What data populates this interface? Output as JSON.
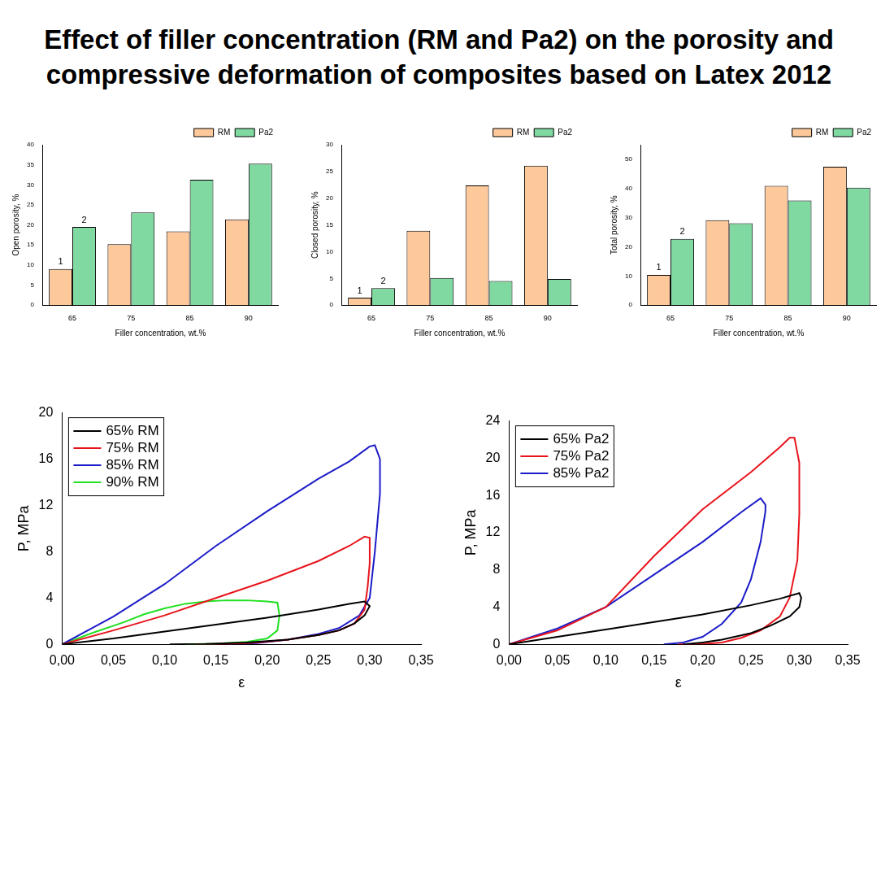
{
  "title": "Effect of filler concentration (RM and Pa2) on the porosity and compressive deformation of composites based on Latex 2012",
  "chart_data": [
    {
      "type": "bar",
      "x_label": "Filler concentration, wt.%",
      "y_label": "Open porosity, %",
      "categories": [
        "65",
        "75",
        "85",
        "90"
      ],
      "series": [
        {
          "name": "RM",
          "color": "#fdc89a",
          "values": [
            9.0,
            15.2,
            18.4,
            21.4
          ]
        },
        {
          "name": "Pa2",
          "color": "#80d9a0",
          "values": [
            19.5,
            23.1,
            31.3,
            35.3
          ]
        }
      ],
      "ylim": [
        0,
        40
      ],
      "yticks": [
        0,
        5,
        10,
        15,
        20,
        25,
        30,
        35,
        40
      ],
      "grid": false,
      "legend": "upper right",
      "annotations": [
        {
          "text": "1",
          "category": "65",
          "series": "RM"
        },
        {
          "text": "2",
          "category": "65",
          "series": "Pa2"
        }
      ]
    },
    {
      "type": "bar",
      "x_label": "Filler concentration, wt.%",
      "y_label": "Closed porosity, %",
      "categories": [
        "65",
        "75",
        "85",
        "90"
      ],
      "series": [
        {
          "name": "RM",
          "color": "#fdc89a",
          "values": [
            1.4,
            13.9,
            22.4,
            26.1
          ]
        },
        {
          "name": "Pa2",
          "color": "#80d9a0",
          "values": [
            3.2,
            5.1,
            4.5,
            4.9
          ]
        }
      ],
      "ylim": [
        0,
        30
      ],
      "yticks": [
        0,
        5,
        10,
        15,
        20,
        25,
        30
      ],
      "grid": false,
      "legend": "upper right",
      "annotations": [
        {
          "text": "1",
          "category": "65",
          "series": "RM"
        },
        {
          "text": "2",
          "category": "65",
          "series": "Pa2"
        }
      ]
    },
    {
      "type": "bar",
      "x_label": "Filler concentration, wt.%",
      "y_label": "Total porosity, %",
      "categories": [
        "65",
        "75",
        "85",
        "90"
      ],
      "series": [
        {
          "name": "RM",
          "color": "#fdc89a",
          "values": [
            10.4,
            29.1,
            40.9,
            47.5
          ]
        },
        {
          "name": "Pa2",
          "color": "#80d9a0",
          "values": [
            22.7,
            28.1,
            35.9,
            40.3
          ]
        }
      ],
      "ylim": [
        0,
        55
      ],
      "yticks": [
        0,
        10,
        20,
        30,
        40,
        50
      ],
      "grid": false,
      "legend": "upper right",
      "annotations": [
        {
          "text": "1",
          "category": "65",
          "series": "RM"
        },
        {
          "text": "2",
          "category": "65",
          "series": "Pa2"
        }
      ]
    },
    {
      "type": "line",
      "x_label": "ε",
      "y_label": "P, MPa",
      "series": [
        {
          "name": "65% RM",
          "color": "#000000",
          "x": [
            0,
            0.05,
            0.1,
            0.15,
            0.2,
            0.25,
            0.28,
            0.295,
            0.3,
            0.295,
            0.285,
            0.27,
            0.25,
            0.22,
            0.18,
            0.14,
            0.105
          ],
          "y": [
            0,
            0.5,
            1.1,
            1.7,
            2.3,
            3.0,
            3.5,
            3.7,
            3.3,
            2.5,
            1.8,
            1.2,
            0.8,
            0.4,
            0.15,
            0.03,
            0
          ]
        },
        {
          "name": "75% RM",
          "color": "#e8141c",
          "x": [
            0,
            0.05,
            0.1,
            0.15,
            0.2,
            0.25,
            0.28,
            0.295,
            0.3,
            0.3,
            0.298,
            0.295,
            0.285,
            0.27,
            0.25,
            0.22,
            0.19,
            0.16,
            0.13
          ],
          "y": [
            0,
            1.2,
            2.5,
            4.0,
            5.5,
            7.2,
            8.5,
            9.3,
            9.2,
            7.0,
            5.0,
            3.0,
            1.8,
            1.2,
            0.8,
            0.4,
            0.15,
            0.02,
            0
          ]
        },
        {
          "name": "85% RM",
          "color": "#1c1cc8",
          "x": [
            0,
            0.05,
            0.1,
            0.15,
            0.2,
            0.25,
            0.28,
            0.3,
            0.305,
            0.31,
            0.31,
            0.305,
            0.3,
            0.29,
            0.27,
            0.25,
            0.22,
            0.19,
            0.16
          ],
          "y": [
            0,
            2.4,
            5.2,
            8.5,
            11.5,
            14.3,
            15.8,
            17.1,
            17.2,
            16.0,
            13.0,
            8.0,
            4.0,
            2.5,
            1.4,
            0.9,
            0.4,
            0.1,
            0
          ]
        },
        {
          "name": "90% RM",
          "color": "#22e022",
          "x": [
            0,
            0.03,
            0.06,
            0.08,
            0.1,
            0.12,
            0.14,
            0.16,
            0.18,
            0.2,
            0.21,
            0.212,
            0.21,
            0.2,
            0.18,
            0.15,
            0.12
          ],
          "y": [
            0,
            1.0,
            1.9,
            2.6,
            3.1,
            3.5,
            3.7,
            3.8,
            3.8,
            3.7,
            3.6,
            2.5,
            1.2,
            0.5,
            0.2,
            0.05,
            0
          ]
        }
      ],
      "xlim": [
        0,
        0.35
      ],
      "xticks": [
        {
          "value": 0,
          "label": "0,00"
        },
        {
          "value": 0.05,
          "label": "0,05"
        },
        {
          "value": 0.1,
          "label": "0,10"
        },
        {
          "value": 0.15,
          "label": "0,15"
        },
        {
          "value": 0.2,
          "label": "0,20"
        },
        {
          "value": 0.25,
          "label": "0,25"
        },
        {
          "value": 0.3,
          "label": "0,30"
        },
        {
          "value": 0.35,
          "label": "0,35"
        }
      ],
      "ylim": [
        0,
        20
      ],
      "yticks": [
        0,
        4,
        8,
        12,
        16,
        20
      ],
      "grid": false,
      "legend": "upper left"
    },
    {
      "type": "line",
      "x_label": "ε",
      "y_label": "P, MPa",
      "series": [
        {
          "name": "65% Pa2",
          "color": "#000000",
          "x": [
            0,
            0.05,
            0.1,
            0.15,
            0.2,
            0.25,
            0.28,
            0.3,
            0.302,
            0.3,
            0.29,
            0.27,
            0.25,
            0.22,
            0.2,
            0.18
          ],
          "y": [
            0,
            0.8,
            1.6,
            2.4,
            3.2,
            4.2,
            4.9,
            5.5,
            5.0,
            4.0,
            3.0,
            2.0,
            1.2,
            0.5,
            0.2,
            0
          ]
        },
        {
          "name": "75% Pa2",
          "color": "#e8141c",
          "x": [
            0,
            0.05,
            0.1,
            0.15,
            0.2,
            0.25,
            0.28,
            0.29,
            0.295,
            0.3,
            0.3,
            0.298,
            0.29,
            0.28,
            0.26,
            0.24,
            0.22,
            0.2,
            0.175
          ],
          "y": [
            0,
            1.5,
            4.0,
            9.5,
            14.5,
            18.5,
            21.2,
            22.2,
            22.2,
            19.5,
            14.0,
            9.0,
            5.0,
            3.0,
            1.5,
            0.7,
            0.2,
            0.05,
            0
          ]
        },
        {
          "name": "85% Pa2",
          "color": "#1c1cc8",
          "x": [
            0,
            0.05,
            0.1,
            0.15,
            0.2,
            0.24,
            0.26,
            0.265,
            0.265,
            0.26,
            0.25,
            0.24,
            0.22,
            0.2,
            0.18,
            0.16
          ],
          "y": [
            0,
            1.7,
            4.0,
            7.5,
            11.0,
            14.2,
            15.7,
            15.0,
            14.3,
            11.0,
            7.0,
            4.5,
            2.2,
            0.8,
            0.2,
            0
          ]
        }
      ],
      "xlim": [
        0,
        0.35
      ],
      "xticks": [
        {
          "value": 0,
          "label": "0,00"
        },
        {
          "value": 0.05,
          "label": "0,05"
        },
        {
          "value": 0.1,
          "label": "0,10"
        },
        {
          "value": 0.15,
          "label": "0,15"
        },
        {
          "value": 0.2,
          "label": "0,20"
        },
        {
          "value": 0.25,
          "label": "0,25"
        },
        {
          "value": 0.3,
          "label": "0,30"
        },
        {
          "value": 0.35,
          "label": "0,35"
        }
      ],
      "ylim": [
        0,
        24
      ],
      "yticks": [
        0,
        4,
        8,
        12,
        16,
        20,
        24
      ],
      "grid": false,
      "legend": "upper left"
    }
  ]
}
